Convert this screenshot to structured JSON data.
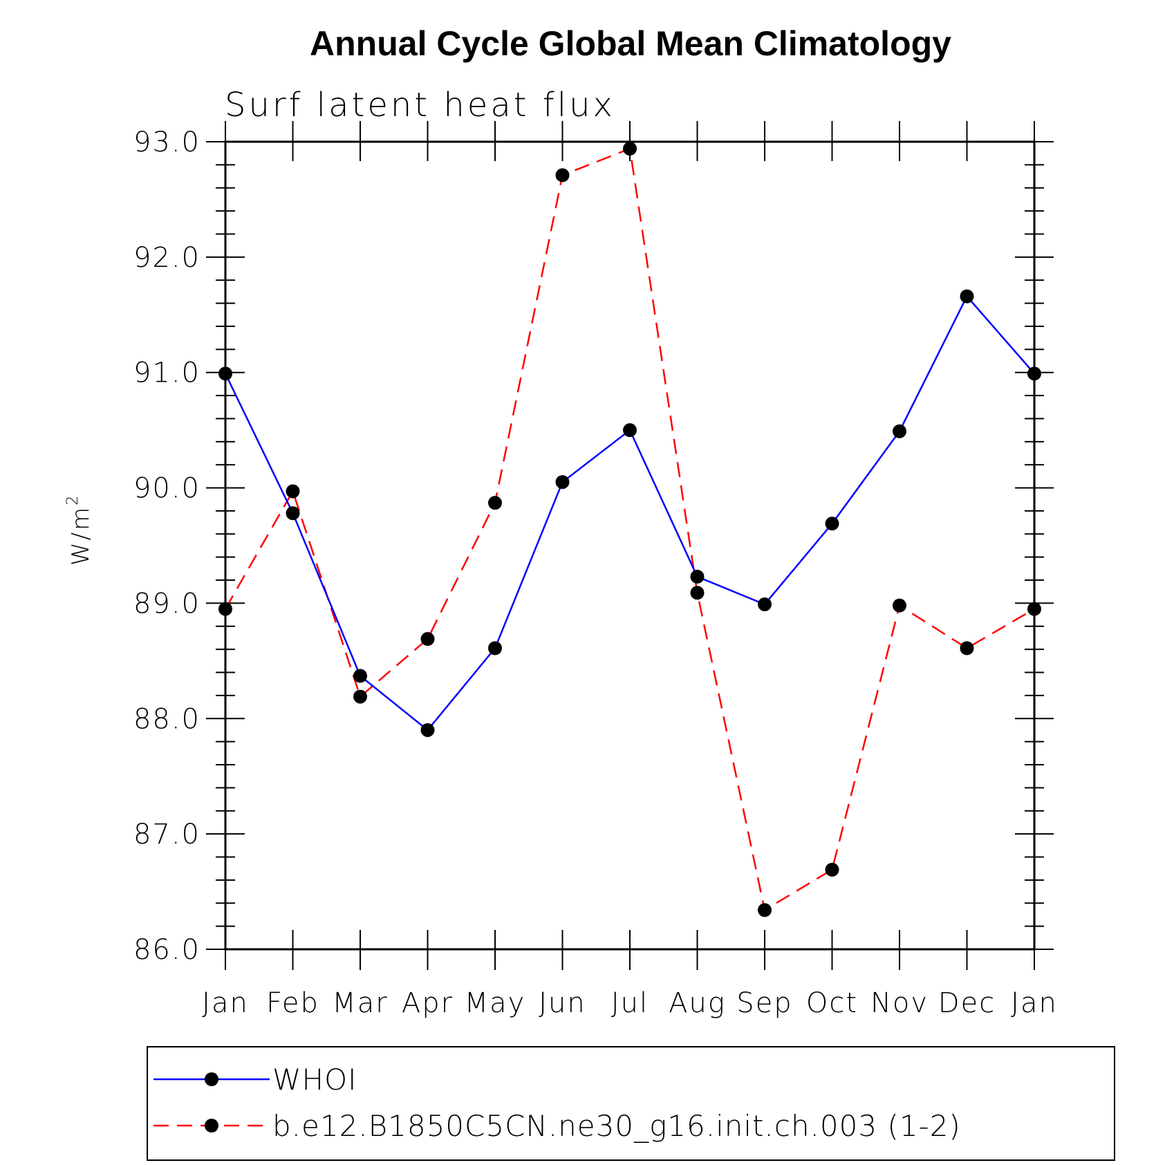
{
  "chart_data": {
    "type": "line",
    "title": "Annual Cycle Global Mean Climatology",
    "subtitle": "Surf latent heat flux",
    "xlabel": "",
    "ylabel": "W/m",
    "ylabel_superscript": "2",
    "ylim": [
      86.0,
      93.0
    ],
    "y_ticks": [
      "86.0",
      "87.0",
      "88.0",
      "89.0",
      "90.0",
      "91.0",
      "92.0",
      "93.0"
    ],
    "categories": [
      "Jan",
      "Feb",
      "Mar",
      "Apr",
      "May",
      "Jun",
      "Jul",
      "Aug",
      "Sep",
      "Oct",
      "Nov",
      "Dec",
      "Jan"
    ],
    "grid": false,
    "legend_position": "bottom",
    "series": [
      {
        "name": "WHOI",
        "color": "#0000ff",
        "line_style": "solid",
        "marker": "filled-circle",
        "values": [
          90.99,
          89.78,
          88.37,
          87.9,
          88.61,
          90.05,
          90.5,
          89.23,
          88.99,
          89.69,
          90.49,
          91.66,
          90.99
        ]
      },
      {
        "name": "b.e12.B1850C5CN.ne30_g16.init.ch.003 (1-2)",
        "color": "#ff0000",
        "line_style": "dashed",
        "marker": "filled-circle",
        "values": [
          88.95,
          89.97,
          88.19,
          88.69,
          89.87,
          92.71,
          92.94,
          89.09,
          86.34,
          86.69,
          88.98,
          88.61,
          88.95
        ]
      }
    ]
  }
}
